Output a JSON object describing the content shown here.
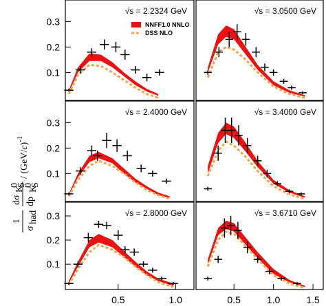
{
  "ylabel": [
    "1",
    "σ",
    "had",
    "dσ",
    "K",
    "S",
    "0",
    "dp",
    "K",
    "S",
    "0",
    "/ (GeV/",
    "c",
    ")",
    "-1"
  ],
  "chart_data": [
    {
      "type": "band-points",
      "annotation": "√s = 2.2324 GeV",
      "xlim": [
        0.04,
        1.16
      ],
      "ylim": [
        -0.01,
        0.385
      ],
      "yticks": [
        0.1,
        0.2,
        0.3
      ],
      "legend": true,
      "series": [
        {
          "name": "NNFF1.0 NNLO",
          "color": "#ee1111",
          "x": [
            0.07,
            0.15,
            0.25,
            0.35,
            0.45,
            0.55,
            0.65,
            0.75,
            0.85
          ],
          "upper": [
            0.03,
            0.12,
            0.175,
            0.17,
            0.14,
            0.1,
            0.065,
            0.035,
            0.015
          ],
          "lower": [
            0.02,
            0.1,
            0.145,
            0.145,
            0.12,
            0.085,
            0.05,
            0.025,
            0.008
          ]
        },
        {
          "name": "DSS NLO",
          "color": "#f5a347",
          "x": [
            0.07,
            0.15,
            0.25,
            0.35,
            0.45,
            0.55,
            0.65,
            0.75,
            0.85
          ],
          "values": [
            0.015,
            0.09,
            0.13,
            0.125,
            0.1,
            0.07,
            0.04,
            0.015,
            0.0
          ]
        }
      ],
      "points": {
        "x": [
          0.07,
          0.17,
          0.27,
          0.38,
          0.48,
          0.56,
          0.65,
          0.75,
          0.86
        ],
        "values": [
          0.03,
          0.11,
          0.18,
          0.21,
          0.2,
          0.17,
          0.11,
          0.08,
          0.1
        ],
        "errors": [
          0.005,
          0.015,
          0.015,
          0.02,
          0.02,
          0.02,
          0.015,
          0.015,
          0.012
        ],
        "xerror": 0.04
      }
    },
    {
      "type": "band-points",
      "annotation": "√s = 3.0500 GeV",
      "xlim": [
        0.02,
        1.63
      ],
      "ylim": [
        -0.01,
        0.385
      ],
      "series": [
        {
          "color": "#ee1111",
          "x": [
            0.17,
            0.3,
            0.4,
            0.5,
            0.65,
            0.8,
            1.0,
            1.2,
            1.4
          ],
          "upper": [
            0.12,
            0.25,
            0.285,
            0.27,
            0.2,
            0.13,
            0.065,
            0.03,
            0.01
          ],
          "lower": [
            0.1,
            0.21,
            0.24,
            0.23,
            0.17,
            0.11,
            0.05,
            0.02,
            0.005
          ]
        },
        {
          "color": "#f5a347",
          "x": [
            0.17,
            0.3,
            0.4,
            0.5,
            0.65,
            0.8,
            1.0,
            1.2,
            1.4
          ],
          "values": [
            0.08,
            0.18,
            0.2,
            0.19,
            0.15,
            0.1,
            0.045,
            0.015,
            0.0
          ]
        }
      ],
      "points": {
        "x": [
          0.17,
          0.31,
          0.44,
          0.54,
          0.65,
          0.78,
          0.89,
          1.0,
          1.13,
          1.23,
          1.37
        ],
        "values": [
          0.1,
          0.18,
          0.23,
          0.26,
          0.23,
          0.18,
          0.12,
          0.1,
          0.065,
          0.04,
          0.02
        ],
        "errors": [
          0.01,
          0.02,
          0.03,
          0.03,
          0.025,
          0.02,
          0.015,
          0.012,
          0.01,
          0.008,
          0.006
        ],
        "xerror": 0.05
      }
    },
    {
      "type": "band-points",
      "annotation": "√s = 2.4000 GeV",
      "xlim": [
        0.04,
        1.16
      ],
      "ylim": [
        -0.01,
        0.385
      ],
      "yticks": [
        0.1,
        0.2,
        0.3
      ],
      "series": [
        {
          "color": "#ee1111",
          "x": [
            0.07,
            0.15,
            0.25,
            0.33,
            0.45,
            0.55,
            0.65,
            0.75,
            0.85,
            0.95
          ],
          "upper": [
            0.02,
            0.1,
            0.17,
            0.185,
            0.16,
            0.12,
            0.08,
            0.05,
            0.025,
            0.01
          ],
          "lower": [
            0.015,
            0.085,
            0.145,
            0.16,
            0.14,
            0.1,
            0.065,
            0.04,
            0.015,
            0.005
          ]
        },
        {
          "color": "#f5a347",
          "x": [
            0.07,
            0.15,
            0.25,
            0.33,
            0.45,
            0.55,
            0.65,
            0.75,
            0.85,
            0.95
          ],
          "values": [
            0.01,
            0.075,
            0.13,
            0.15,
            0.13,
            0.1,
            0.065,
            0.035,
            0.015,
            0.0
          ]
        }
      ],
      "points": {
        "x": [
          0.07,
          0.17,
          0.27,
          0.32,
          0.4,
          0.49,
          0.58,
          0.7,
          0.8,
          0.92
        ],
        "values": [
          0.02,
          0.11,
          0.19,
          0.17,
          0.23,
          0.21,
          0.17,
          0.12,
          0.1,
          0.07
        ],
        "errors": [
          0.005,
          0.015,
          0.02,
          0.02,
          0.03,
          0.025,
          0.02,
          0.015,
          0.012,
          0.01
        ],
        "xerror": 0.04
      }
    },
    {
      "type": "band-points",
      "annotation": "√s = 3.4000 GeV",
      "xlim": [
        0.02,
        1.63
      ],
      "ylim": [
        -0.01,
        0.385
      ],
      "series": [
        {
          "color": "#ee1111",
          "x": [
            0.17,
            0.3,
            0.4,
            0.5,
            0.65,
            0.8,
            1.0,
            1.2,
            1.4
          ],
          "upper": [
            0.13,
            0.26,
            0.3,
            0.285,
            0.22,
            0.15,
            0.075,
            0.035,
            0.01
          ],
          "lower": [
            0.1,
            0.22,
            0.255,
            0.24,
            0.185,
            0.125,
            0.06,
            0.025,
            0.005
          ]
        },
        {
          "color": "#f5a347",
          "x": [
            0.17,
            0.3,
            0.4,
            0.5,
            0.65,
            0.8,
            1.0,
            1.2,
            1.4
          ],
          "values": [
            0.09,
            0.19,
            0.225,
            0.21,
            0.165,
            0.11,
            0.05,
            0.018,
            0.0
          ]
        }
      ],
      "points": {
        "x": [
          0.17,
          0.3,
          0.39,
          0.47,
          0.56,
          0.67,
          0.8,
          0.92,
          1.05,
          1.2,
          1.35
        ],
        "values": [
          0.04,
          0.18,
          0.27,
          0.27,
          0.25,
          0.21,
          0.15,
          0.1,
          0.06,
          0.03,
          0.02
        ],
        "errors": [
          0.008,
          0.03,
          0.05,
          0.05,
          0.04,
          0.03,
          0.02,
          0.015,
          0.01,
          0.008,
          0.006
        ],
        "xerror": 0.05
      }
    },
    {
      "type": "band-points",
      "annotation": "√s = 2.8000 GeV",
      "xlim": [
        0.04,
        1.16
      ],
      "ylim": [
        -0.005,
        0.357
      ],
      "yticks": [
        0.1,
        0.2,
        0.3
      ],
      "xticks": [
        0.5,
        {
          "value": 1,
          "label": "1.0"
        }
      ],
      "series": [
        {
          "color": "#ee1111",
          "x": [
            0.07,
            0.15,
            0.25,
            0.33,
            0.45,
            0.55,
            0.65,
            0.75,
            0.85,
            0.98
          ],
          "upper": [
            0.03,
            0.11,
            0.2,
            0.225,
            0.2,
            0.155,
            0.11,
            0.07,
            0.04,
            0.02
          ],
          "lower": [
            0.02,
            0.09,
            0.17,
            0.19,
            0.17,
            0.13,
            0.09,
            0.055,
            0.03,
            0.01
          ]
        },
        {
          "color": "#f5a347",
          "x": [
            0.07,
            0.15,
            0.25,
            0.33,
            0.45,
            0.55,
            0.65,
            0.75,
            0.85,
            0.98
          ],
          "values": [
            0.015,
            0.08,
            0.15,
            0.18,
            0.16,
            0.13,
            0.09,
            0.055,
            0.025,
            0.005
          ]
        }
      ],
      "points": {
        "x": [
          0.07,
          0.15,
          0.24,
          0.33,
          0.4,
          0.5,
          0.56,
          0.64,
          0.72,
          0.8,
          0.88,
          0.98
        ],
        "values": [
          0.02,
          0.1,
          0.21,
          0.265,
          0.26,
          0.22,
          0.16,
          0.15,
          0.1,
          0.075,
          0.04,
          0.02
        ],
        "errors": [
          0.005,
          0.012,
          0.02,
          0.015,
          0.015,
          0.02,
          0.015,
          0.015,
          0.012,
          0.01,
          0.008,
          0.006
        ],
        "xerror": 0.04
      }
    },
    {
      "type": "band-points",
      "annotation": "√s = 3.6710 GeV",
      "xlim": [
        0.02,
        1.63
      ],
      "ylim": [
        -0.005,
        0.357
      ],
      "xticks": [
        0.5,
        {
          "value": 1,
          "label": "1.0"
        },
        1.5
      ],
      "series": [
        {
          "color": "#ee1111",
          "x": [
            0.17,
            0.3,
            0.4,
            0.5,
            0.65,
            0.8,
            1.0,
            1.2,
            1.4
          ],
          "upper": [
            0.12,
            0.25,
            0.28,
            0.27,
            0.21,
            0.15,
            0.08,
            0.035,
            0.01
          ],
          "lower": [
            0.1,
            0.22,
            0.245,
            0.235,
            0.18,
            0.125,
            0.06,
            0.025,
            0.005
          ]
        },
        {
          "color": "#f5a347",
          "x": [
            0.17,
            0.3,
            0.4,
            0.5,
            0.65,
            0.8,
            1.0,
            1.2,
            1.4
          ],
          "values": [
            0.09,
            0.2,
            0.235,
            0.225,
            0.175,
            0.12,
            0.055,
            0.02,
            0.0
          ]
        }
      ],
      "points": {
        "x": [
          0.17,
          0.3,
          0.38,
          0.46,
          0.55,
          0.67,
          0.8,
          0.95,
          1.1,
          1.3
        ],
        "values": [
          0.04,
          0.12,
          0.25,
          0.26,
          0.24,
          0.17,
          0.12,
          0.07,
          0.04,
          0.02
        ],
        "errors": [
          0.008,
          0.015,
          0.04,
          0.04,
          0.035,
          0.025,
          0.015,
          0.012,
          0.008,
          0.006
        ],
        "xerror": 0.05
      }
    }
  ]
}
